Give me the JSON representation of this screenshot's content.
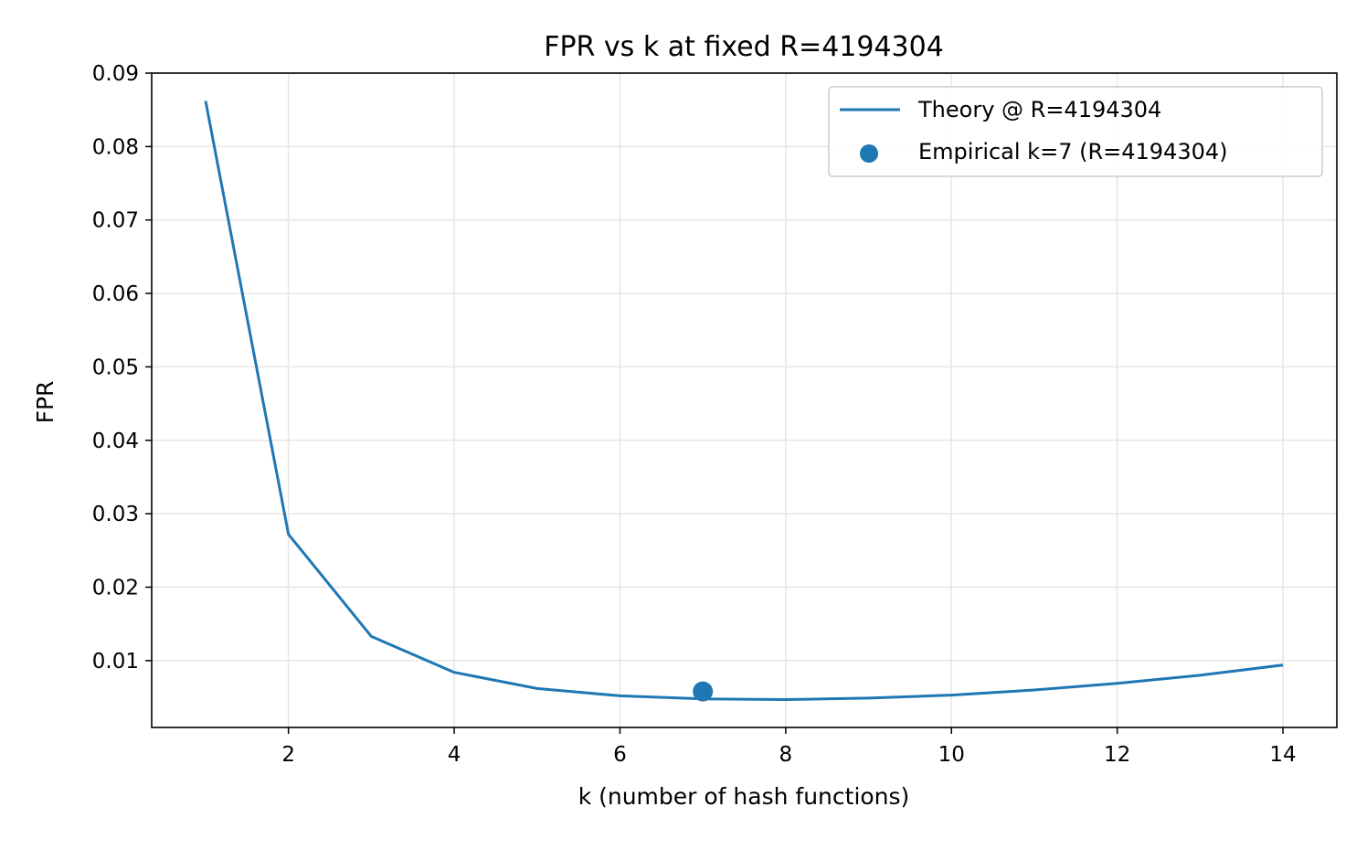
{
  "chart_data": {
    "type": "line",
    "title": "FPR vs k at fixed R=4194304",
    "xlabel": "k (number of hash functions)",
    "ylabel": "FPR",
    "xlim": [
      0.35,
      14.65
    ],
    "ylim": [
      0.0009,
      0.09
    ],
    "x_ticks": [
      2,
      4,
      6,
      8,
      10,
      12,
      14
    ],
    "x_tick_labels": [
      "2",
      "4",
      "6",
      "8",
      "10",
      "12",
      "14"
    ],
    "y_ticks": [
      0.01,
      0.02,
      0.03,
      0.04,
      0.05,
      0.06,
      0.07,
      0.08,
      0.09
    ],
    "y_tick_labels": [
      "0.01",
      "0.02",
      "0.03",
      "0.04",
      "0.05",
      "0.06",
      "0.07",
      "0.08",
      "0.09"
    ],
    "grid": true,
    "legend_position": "top-right",
    "colors": {
      "series": "#1f77b4",
      "grid": "#e6e6e6",
      "axes": "#000000"
    },
    "series": [
      {
        "name": "Theory @ R=4194304",
        "kind": "line",
        "x": [
          1,
          2,
          3,
          4,
          5,
          6,
          7,
          8,
          9,
          10,
          11,
          12,
          13,
          14
        ],
        "y": [
          0.0862,
          0.0272,
          0.0133,
          0.0084,
          0.0062,
          0.0052,
          0.0048,
          0.0047,
          0.0049,
          0.0053,
          0.006,
          0.0069,
          0.008,
          0.0094
        ]
      },
      {
        "name": "Empirical k=7 (R=4194304)",
        "kind": "scatter",
        "x": [
          7
        ],
        "y": [
          0.0058
        ]
      }
    ]
  }
}
